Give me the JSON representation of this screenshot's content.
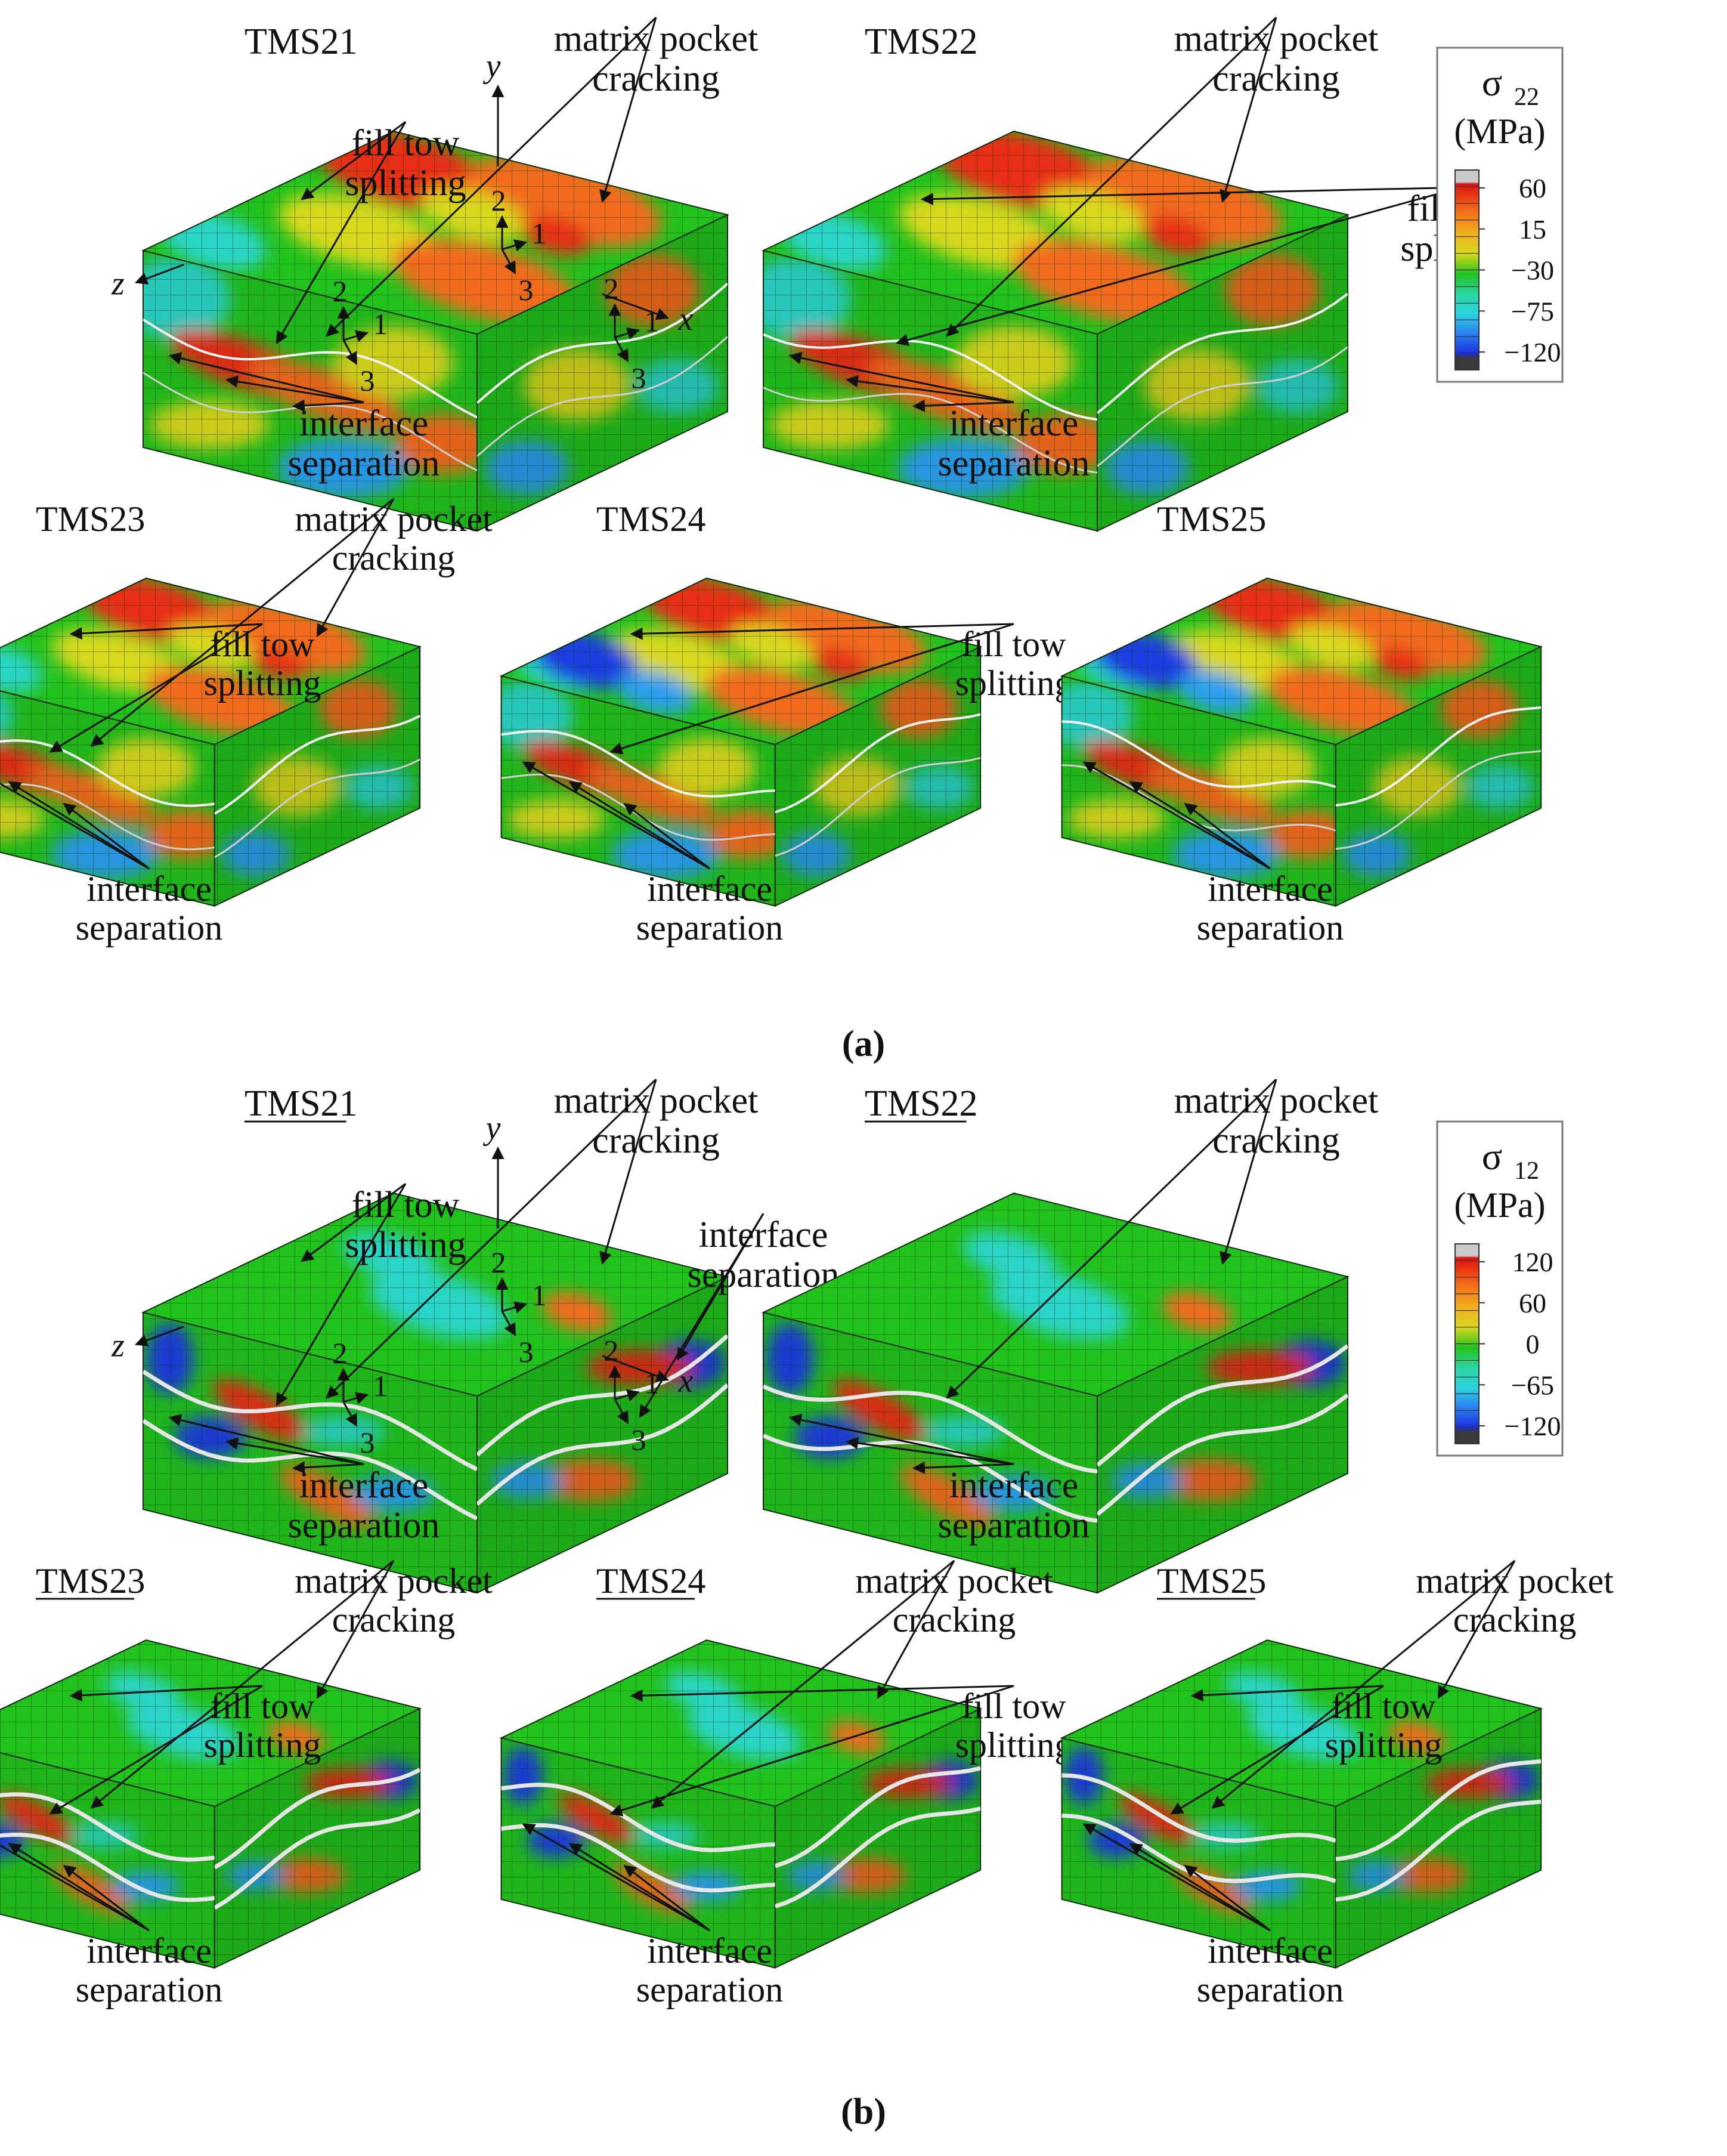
{
  "colors": {
    "green": "#22c21d",
    "red": "#e82d12",
    "orange": "#f26a1a",
    "yellow": "#d8d81c",
    "cyan": "#2ad4c8",
    "lightblue": "#2a9ff0",
    "blue": "#1a3ee0",
    "gray": "#c9c9c9",
    "dark": "#3b3b3b",
    "mesh": "#1a4f12"
  },
  "panel_a": {
    "caption": "(a)",
    "legend": {
      "symbol": "σ",
      "subscript": "22",
      "unit": "(MPa)",
      "ticks": [
        "60",
        "15",
        "−30",
        "−75",
        "−120"
      ]
    },
    "models": [
      {
        "name": "TMS21",
        "labels": [
          {
            "key": "mp",
            "lines": [
              "matrix pocket",
              "cracking"
            ]
          },
          {
            "key": "fs",
            "lines": [
              "fill tow",
              "splitting"
            ]
          },
          {
            "key": "is",
            "lines": [
              "interface",
              "separation"
            ]
          }
        ],
        "axes": {
          "y": "y",
          "z": "z",
          "x": "x"
        },
        "triads": [
          {
            "t": "2",
            "a": "1",
            "b": "3"
          },
          {
            "t": "2",
            "a": "1",
            "b": "3"
          },
          {
            "t": "2",
            "a": "1",
            "b": "3"
          }
        ]
      },
      {
        "name": "TMS22",
        "labels": [
          {
            "key": "mp",
            "lines": [
              "matrix pocket",
              "cracking"
            ]
          },
          {
            "key": "fs",
            "lines": [
              "fill tow",
              "splitting"
            ]
          },
          {
            "key": "is",
            "lines": [
              "interface",
              "separation"
            ]
          }
        ]
      },
      {
        "name": "TMS23",
        "labels": [
          {
            "key": "mp",
            "lines": [
              "matrix pocket",
              "cracking"
            ]
          },
          {
            "key": "fs",
            "lines": [
              "fill tow",
              "splitting"
            ]
          },
          {
            "key": "is",
            "lines": [
              "interface",
              "separation"
            ]
          }
        ]
      },
      {
        "name": "TMS24",
        "labels": [
          {
            "key": "fs",
            "lines": [
              "fill tow",
              "splitting"
            ]
          },
          {
            "key": "is",
            "lines": [
              "interface",
              "separation"
            ]
          }
        ]
      },
      {
        "name": "TMS25",
        "labels": [
          {
            "key": "is",
            "lines": [
              "interface",
              "separation"
            ]
          }
        ]
      }
    ]
  },
  "panel_b": {
    "caption": "(b)",
    "legend": {
      "symbol": "σ",
      "subscript": "12",
      "unit": "(MPa)",
      "ticks": [
        "120",
        "60",
        "0",
        "−65",
        "−120"
      ]
    },
    "models": [
      {
        "name": "TMS21",
        "labels": [
          {
            "key": "mp",
            "lines": [
              "matrix pocket",
              "cracking"
            ]
          },
          {
            "key": "fs",
            "lines": [
              "fill tow",
              "splitting"
            ]
          },
          {
            "key": "is2",
            "lines": [
              "interface",
              "separation"
            ]
          },
          {
            "key": "is",
            "lines": [
              "interface",
              "separation"
            ]
          }
        ],
        "axes": {
          "y": "y",
          "z": "z",
          "x": "x"
        },
        "triads": [
          {
            "t": "2",
            "a": "1",
            "b": "3"
          },
          {
            "t": "2",
            "a": "1",
            "b": "3"
          },
          {
            "t": "2",
            "a": "1",
            "b": "3"
          }
        ]
      },
      {
        "name": "TMS22",
        "labels": [
          {
            "key": "mp",
            "lines": [
              "matrix pocket",
              "cracking"
            ]
          },
          {
            "key": "is",
            "lines": [
              "interface",
              "separation"
            ]
          }
        ]
      },
      {
        "name": "TMS23",
        "labels": [
          {
            "key": "mp",
            "lines": [
              "matrix pocket",
              "cracking"
            ]
          },
          {
            "key": "fs",
            "lines": [
              "fill tow",
              "splitting"
            ]
          },
          {
            "key": "is",
            "lines": [
              "interface",
              "separation"
            ]
          }
        ]
      },
      {
        "name": "TMS24",
        "labels": [
          {
            "key": "mp",
            "lines": [
              "matrix pocket",
              "cracking"
            ]
          },
          {
            "key": "fs",
            "lines": [
              "fill tow",
              "splitting"
            ]
          },
          {
            "key": "is",
            "lines": [
              "interface",
              "separation"
            ]
          }
        ]
      },
      {
        "name": "TMS25",
        "labels": [
          {
            "key": "mp",
            "lines": [
              "matrix pocket",
              "cracking"
            ]
          },
          {
            "key": "fs",
            "lines": [
              "fill tow",
              "splitting"
            ]
          },
          {
            "key": "is",
            "lines": [
              "interface",
              "separation"
            ]
          }
        ]
      }
    ]
  }
}
